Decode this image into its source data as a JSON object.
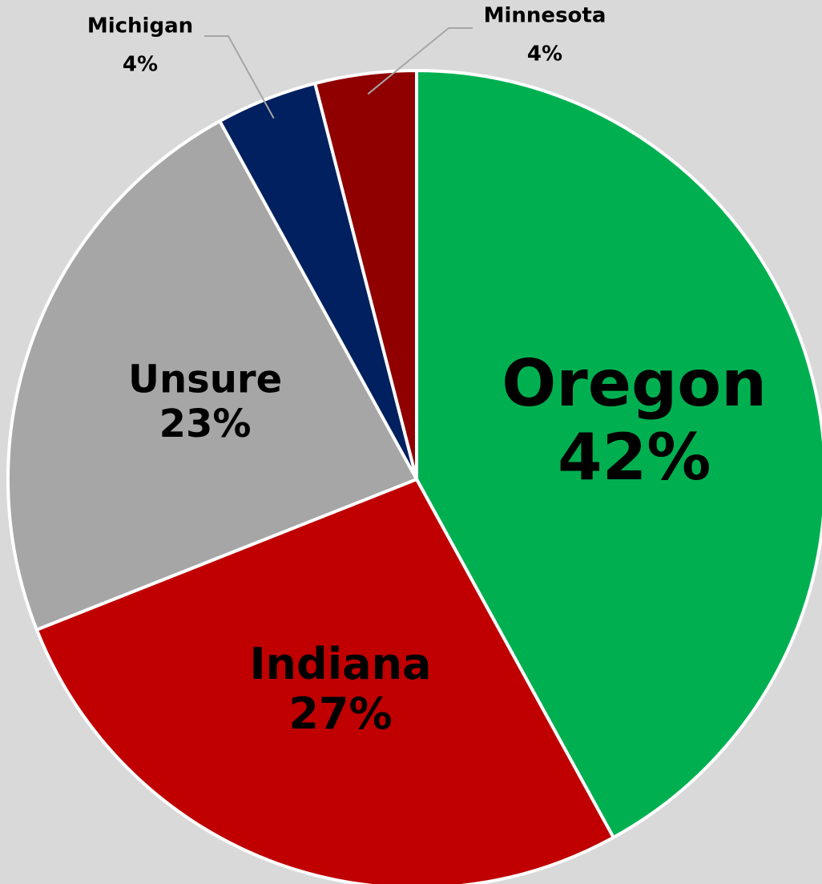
{
  "chart_data": {
    "type": "pie",
    "categories": [
      "Oregon",
      "Indiana",
      "Unsure",
      "Michigan",
      "Minnesota"
    ],
    "values": [
      42,
      27,
      23,
      4,
      4
    ],
    "value_labels": [
      "42%",
      "27%",
      "23%",
      "4%",
      "4%"
    ],
    "colors": [
      "#00b050",
      "#c00000",
      "#a6a6a6",
      "#002060",
      "#900000"
    ]
  }
}
